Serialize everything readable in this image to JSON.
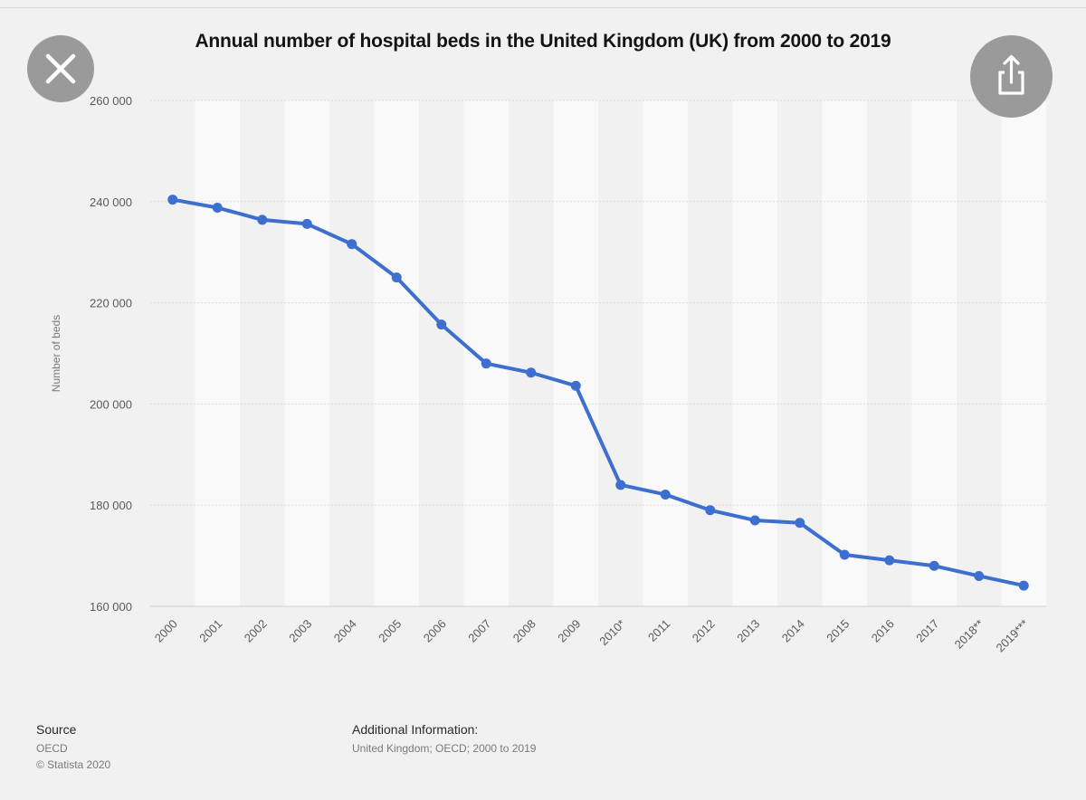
{
  "header": {
    "close_icon": "close-icon",
    "share_icon": "share-icon"
  },
  "chart_data": {
    "type": "line",
    "title": "Annual number of hospital beds in the United Kingdom (UK) from 2000 to 2019",
    "xlabel": "",
    "ylabel": "Number of beds",
    "ylim": [
      160000,
      260000
    ],
    "yticks": [
      {
        "value": 160000,
        "label": "160 000"
      },
      {
        "value": 180000,
        "label": "180 000"
      },
      {
        "value": 200000,
        "label": "200 000"
      },
      {
        "value": 220000,
        "label": "220 000"
      },
      {
        "value": 240000,
        "label": "240 000"
      },
      {
        "value": 260000,
        "label": "260 000"
      }
    ],
    "categories": [
      "2000",
      "2001",
      "2002",
      "2003",
      "2004",
      "2005",
      "2006",
      "2007",
      "2008",
      "2009",
      "2010*",
      "2011",
      "2012",
      "2013",
      "2014",
      "2015",
      "2016",
      "2017",
      "2018**",
      "2019***"
    ],
    "series": [
      {
        "name": "Number of beds",
        "color": "#3d6fd0",
        "values": [
          240400,
          238800,
          236400,
          235600,
          231600,
          225000,
          215700,
          208000,
          206200,
          203600,
          184000,
          182100,
          179000,
          177000,
          176500,
          170200,
          169100,
          168000,
          166000,
          164100
        ]
      }
    ],
    "grid": true,
    "legend": "none"
  },
  "footer": {
    "source_heading": "Source",
    "source_lines": [
      "OECD",
      "© Statista 2020"
    ],
    "info_heading": "Additional Information:",
    "info_text": "United Kingdom; OECD; 2000 to 2019"
  }
}
